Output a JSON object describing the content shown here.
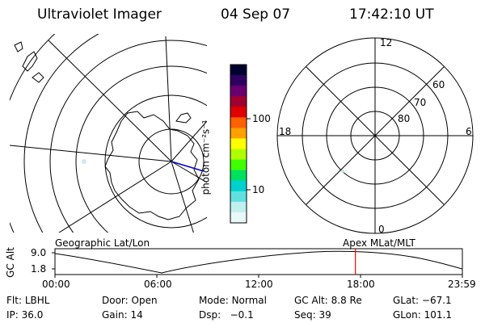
{
  "header": {
    "instrument": "Ultraviolet Imager",
    "date": "04 Sep 07",
    "time": "17:42:10 UT"
  },
  "geo_panel": {
    "label": "Geographic Lat/Lon"
  },
  "apex_panel": {
    "label": "Apex  MLat/MLT",
    "mlt_labels": {
      "top": "12",
      "left": "18",
      "right": "6",
      "bottom": "0"
    },
    "lat_labels": [
      "60",
      "70",
      "80"
    ]
  },
  "colorbar": {
    "unit_label": "photon cm⁻²s⁻¹",
    "ticks": [
      "100",
      "10"
    ],
    "scale": "log",
    "colors": [
      "#000030",
      "#300060",
      "#6a0070",
      "#a00030",
      "#e00000",
      "#ff6000",
      "#ffa000",
      "#ffff00",
      "#b0ff00",
      "#40ff00",
      "#00e060",
      "#00d0d0",
      "#60e0e0",
      "#c0f0f0",
      "#e8f8f8"
    ]
  },
  "altitude_plot": {
    "ylabel": "GC Alt",
    "yticks": [
      "9.0",
      "1.8"
    ],
    "xticks": [
      "00:00",
      "06:00",
      "12:00",
      "18:00",
      "23:59"
    ],
    "current_time_marker_hours": 17.7,
    "marker_color": "#ff0000"
  },
  "status": {
    "flt_label": "Flt:",
    "flt_value": "LBHL",
    "door_label": "Door:",
    "door_value": "Open",
    "mode_label": "Mode:",
    "mode_value": "Normal",
    "gcalt_label": "GC Alt:",
    "gcalt_value": "8.8 Re",
    "glat_label": "GLat:",
    "glat_value": "−67.1",
    "ip_label": "IP:",
    "ip_value": "36.0",
    "gain_label": "Gain:",
    "gain_value": "14",
    "dsp_label": "Dsp:",
    "dsp_value": "−0.1",
    "seq_label": "Seq:",
    "seq_value": "39",
    "glon_label": "GLon:",
    "glon_value": "101.1"
  }
}
